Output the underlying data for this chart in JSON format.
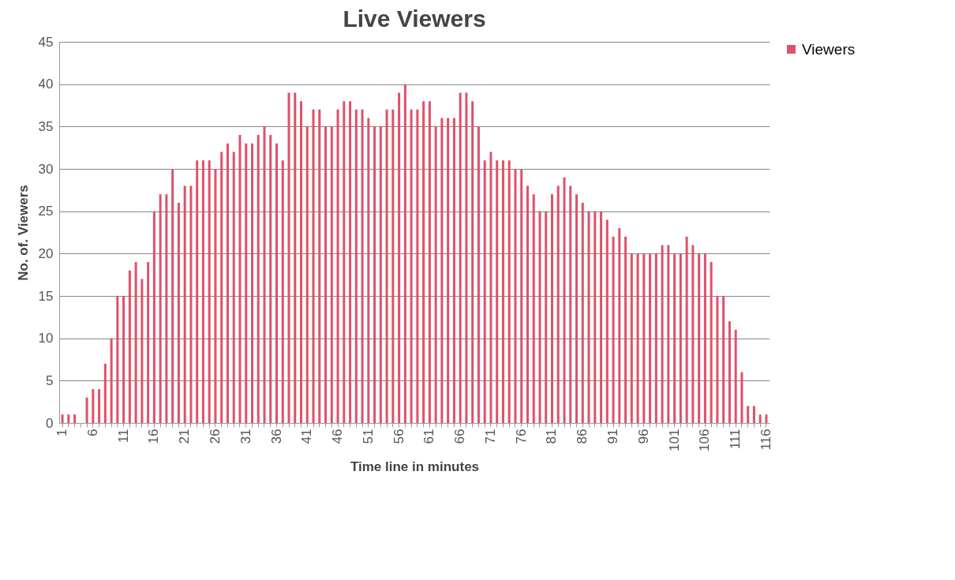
{
  "chart_data": {
    "type": "bar",
    "title": "Live Viewers",
    "xlabel": "Time line in minutes",
    "ylabel": "No. of. Viewers",
    "categories": [
      "1",
      null,
      null,
      null,
      null,
      "6",
      null,
      null,
      null,
      null,
      "11",
      null,
      null,
      null,
      null,
      "16",
      null,
      null,
      null,
      null,
      "21",
      null,
      null,
      null,
      null,
      "26",
      null,
      null,
      null,
      null,
      "31",
      null,
      null,
      null,
      null,
      "36",
      null,
      null,
      null,
      null,
      "41",
      null,
      null,
      null,
      null,
      "46",
      null,
      null,
      null,
      null,
      "51",
      null,
      null,
      null,
      null,
      "56",
      null,
      null,
      null,
      null,
      "61",
      null,
      null,
      null,
      null,
      "66",
      null,
      null,
      null,
      null,
      "71",
      null,
      null,
      null,
      null,
      "76",
      null,
      null,
      null,
      null,
      "81",
      null,
      null,
      null,
      null,
      "86",
      null,
      null,
      null,
      null,
      "91",
      null,
      null,
      null,
      null,
      "96",
      null,
      null,
      null,
      null,
      "101",
      null,
      null,
      null,
      null,
      "106",
      null,
      null,
      null,
      null,
      "111",
      null,
      null,
      null,
      null,
      "116"
    ],
    "series": [
      {
        "name": "Viewers",
        "color": "#e0506a",
        "values": [
          1,
          1,
          1,
          0,
          3,
          4,
          4,
          7,
          10,
          15,
          15,
          18,
          19,
          17,
          19,
          25,
          27,
          27,
          30,
          26,
          28,
          28,
          31,
          31,
          31,
          30,
          32,
          33,
          32,
          34,
          33,
          33,
          34,
          35,
          34,
          33,
          31,
          39,
          39,
          38,
          35,
          37,
          37,
          35,
          35,
          37,
          38,
          38,
          37,
          37,
          36,
          35,
          35,
          37,
          37,
          39,
          40,
          37,
          37,
          38,
          38,
          35,
          36,
          36,
          36,
          39,
          39,
          38,
          35,
          31,
          32,
          31,
          31,
          31,
          30,
          30,
          28,
          27,
          25,
          25,
          27,
          28,
          29,
          28,
          27,
          26,
          25,
          25,
          25,
          24,
          22,
          23,
          22,
          20,
          20,
          20,
          20,
          20,
          21,
          21,
          20,
          20,
          22,
          21,
          20,
          20,
          19,
          15,
          15,
          12,
          11,
          6,
          2,
          2,
          1,
          1
        ]
      }
    ],
    "ylim": [
      0,
      45
    ],
    "yticks": [
      0,
      5,
      10,
      15,
      20,
      25,
      30,
      35,
      40,
      45
    ],
    "grid": "y",
    "legend": "right"
  }
}
